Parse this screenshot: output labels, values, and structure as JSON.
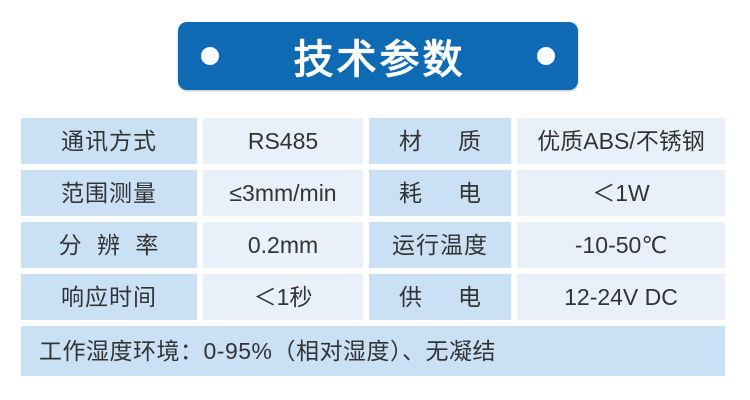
{
  "banner": {
    "title": "技术参数",
    "bg_color": "#0d6ab3",
    "dot_color": "#ffffff",
    "title_color": "#ffffff"
  },
  "table": {
    "rows": [
      {
        "label1": "通讯方式",
        "value1": "RS485",
        "label2": "材 质",
        "value2": "优质ABS/不锈钢"
      },
      {
        "label1": "范围测量",
        "value1": "≤3mm/min",
        "label2": "耗 电",
        "value2": "＜1W"
      },
      {
        "label1": "分 辨 率",
        "value1": "0.2mm",
        "label2": "运行温度",
        "value2": "-10-50℃"
      },
      {
        "label1": "响应时间",
        "value1": "＜1秒",
        "label2": "供 电",
        "value2": "12-24V DC"
      }
    ],
    "footer_note": "工作湿度环境：0-95%（相对湿度）、无凝结",
    "label_cell_bg": "#c9e0f5",
    "value_cell_bg": "#e8f1fa",
    "text_color": "#333333"
  }
}
